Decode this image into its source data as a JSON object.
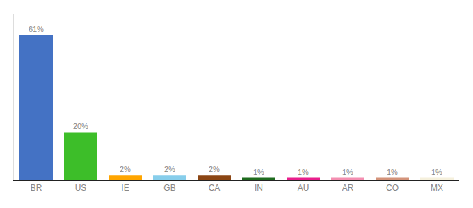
{
  "chart_data": {
    "type": "bar",
    "categories": [
      "BR",
      "US",
      "IE",
      "GB",
      "CA",
      "IN",
      "AU",
      "AR",
      "CO",
      "MX"
    ],
    "values": [
      61,
      20,
      2,
      2,
      2,
      1,
      1,
      1,
      1,
      1
    ],
    "value_labels": [
      "61%",
      "20%",
      "2%",
      "2%",
      "2%",
      "1%",
      "1%",
      "1%",
      "1%",
      "1%"
    ],
    "data_labels": true,
    "colors": [
      "#4472C4",
      "#3DBE29",
      "#FFA500",
      "#87CEEB",
      "#8B4513",
      "#1E6B1E",
      "#E91E8C",
      "#F48FB1",
      "#D4937A",
      "#F5F0DC"
    ],
    "ylim": [
      0,
      70
    ],
    "grid": false,
    "tick_labels": "x"
  }
}
